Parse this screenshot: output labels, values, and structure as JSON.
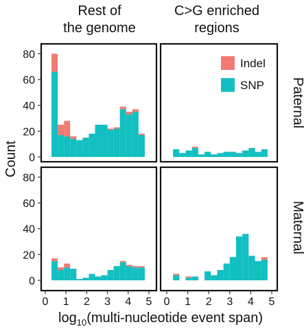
{
  "chart_data": {
    "type": "bar",
    "subtype": "stacked-histogram-facets",
    "ylabel": "Count",
    "xlabel_base": "log",
    "xlabel_sub": "10",
    "xlabel_rest": "(multi-nucleotide event span)",
    "xlim": [
      0,
      5
    ],
    "ylim": [
      0,
      85
    ],
    "x_ticks": [
      "0",
      "1",
      "2",
      "3",
      "4",
      "5"
    ],
    "y_ticks": [
      "0",
      "20",
      "40",
      "60",
      "80"
    ],
    "column_titles": [
      [
        "Rest of",
        "the genome"
      ],
      [
        "C>G enriched",
        "regions"
      ]
    ],
    "row_titles": [
      "Paternal",
      "Maternal"
    ],
    "legend_position": "top-right of upper-right panel",
    "series": [
      {
        "name": "Indel",
        "color": "#F07B72"
      },
      {
        "name": "SNP",
        "color": "#12BFC1"
      }
    ],
    "bin_width": 0.3,
    "bin_starts": [
      0.3,
      0.6,
      0.9,
      1.2,
      1.5,
      1.8,
      2.1,
      2.4,
      2.7,
      3.0,
      3.3,
      3.6,
      3.9,
      4.2,
      4.5
    ],
    "panels": [
      {
        "column": 0,
        "row": 0,
        "snp": [
          66,
          17,
          16,
          14,
          13,
          15,
          18,
          25,
          25,
          21,
          22,
          37,
          33,
          35,
          17
        ],
        "indel": [
          14,
          8,
          12,
          2,
          0,
          0,
          0,
          0,
          0,
          1,
          1,
          2,
          2,
          2,
          1
        ]
      },
      {
        "column": 1,
        "row": 0,
        "snp": [
          6,
          3,
          5,
          7,
          2,
          4,
          2,
          3,
          4,
          4,
          3,
          5,
          7,
          4,
          6
        ],
        "indel": [
          0,
          0,
          0,
          1,
          0,
          0,
          0,
          0,
          0,
          0,
          0,
          0,
          0,
          0,
          0
        ]
      },
      {
        "column": 0,
        "row": 1,
        "snp": [
          15,
          8,
          10,
          9,
          1,
          2,
          5,
          3,
          4,
          8,
          11,
          14,
          11,
          10,
          10
        ],
        "indel": [
          2,
          2,
          3,
          0,
          0,
          0,
          0,
          0,
          0,
          0,
          0,
          1,
          1,
          1,
          1
        ]
      },
      {
        "column": 1,
        "row": 1,
        "snp": [
          4,
          0,
          2,
          3,
          0,
          7,
          4,
          8,
          13,
          18,
          34,
          36,
          19,
          15,
          16
        ],
        "indel": [
          1,
          0,
          1,
          0,
          0,
          0,
          0,
          0,
          0,
          0,
          0,
          0,
          0,
          0,
          2
        ]
      }
    ]
  }
}
